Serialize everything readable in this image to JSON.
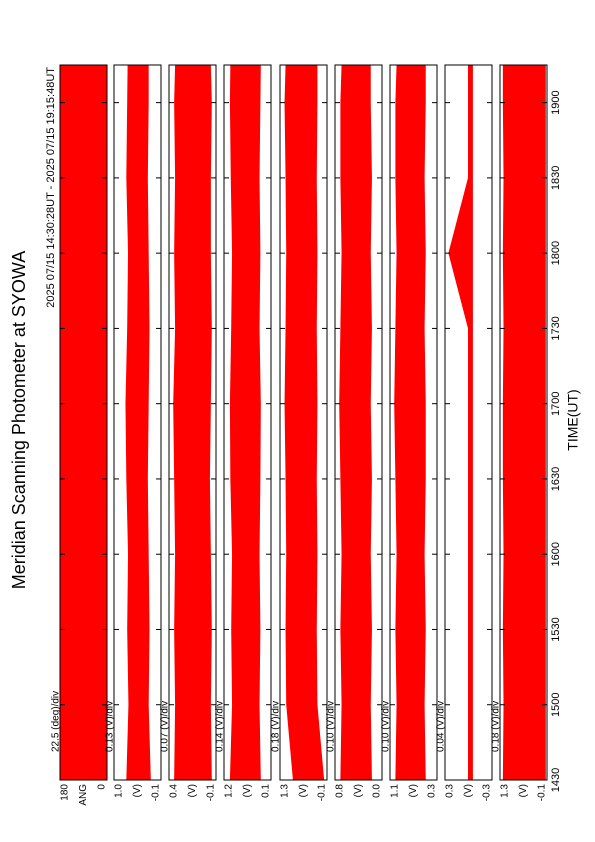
{
  "chart_data": {
    "type": "line",
    "title": "Meridian Scanning Photometer at SYOWA",
    "subtitle": "2025 07/15 14:30:28UT - 2025 07/15 19:15:48UT",
    "xlabel": "TIME(UT)",
    "color": "#ff0000",
    "xlim": [
      870,
      1155
    ],
    "xticks": [
      {
        "value": 870,
        "label": "1430"
      },
      {
        "value": 900,
        "label": "1500"
      },
      {
        "value": 930,
        "label": "1530"
      },
      {
        "value": 960,
        "label": "1600"
      },
      {
        "value": 990,
        "label": "1630"
      },
      {
        "value": 1020,
        "label": "1700"
      },
      {
        "value": 1050,
        "label": "1730"
      },
      {
        "value": 1080,
        "label": "1800"
      },
      {
        "value": 1110,
        "label": "1830"
      },
      {
        "value": 1140,
        "label": "1900"
      }
    ],
    "x": [
      870,
      900,
      930,
      960,
      990,
      1020,
      1050,
      1080,
      1110,
      1140,
      1155
    ],
    "panels": [
      {
        "label": "ANG",
        "scale": "22.5 (deg)/div",
        "ylim": [
          0,
          180
        ],
        "yticks": [
          0,
          180
        ],
        "max": [
          180,
          180,
          180,
          180,
          180,
          180,
          180,
          180,
          180,
          180,
          180
        ],
        "min": [
          0,
          0,
          0,
          0,
          0,
          0,
          0,
          0,
          0,
          0,
          0
        ]
      },
      {
        "label": "(V)",
        "scale": "0.13 (V)/div",
        "ylim": [
          -0.1,
          1.0
        ],
        "yticks": [
          -0.1,
          {
            "value": 1.0,
            "label": "1.0"
          }
        ],
        "max": [
          0.7,
          0.65,
          0.68,
          0.66,
          0.7,
          0.72,
          0.68,
          0.66,
          0.7,
          0.68,
          0.67
        ],
        "min": [
          0.15,
          0.2,
          0.18,
          0.2,
          0.22,
          0.2,
          0.18,
          0.2,
          0.22,
          0.2,
          0.2
        ]
      },
      {
        "label": "(V)",
        "scale": "0.07 (V)/div",
        "ylim": [
          -0.1,
          0.4
        ],
        "yticks": [
          -0.1,
          0.4
        ],
        "max": [
          0.34,
          0.33,
          0.34,
          0.33,
          0.34,
          0.35,
          0.33,
          0.34,
          0.33,
          0.34,
          0.33
        ],
        "min": [
          -0.05,
          -0.04,
          -0.05,
          -0.04,
          -0.03,
          -0.04,
          -0.05,
          -0.04,
          -0.04,
          -0.05,
          -0.04
        ]
      },
      {
        "label": "(V)",
        "scale": "0.14 (V)/div",
        "ylim": [
          0.1,
          1.2
        ],
        "yticks": [
          0.1,
          1.2
        ],
        "max": [
          1.05,
          1.0,
          1.02,
          1.0,
          1.04,
          1.05,
          1.02,
          1.0,
          1.03,
          1.05,
          1.04
        ],
        "min": [
          0.35,
          0.38,
          0.36,
          0.38,
          0.36,
          0.35,
          0.38,
          0.36,
          0.38,
          0.36,
          0.35
        ]
      },
      {
        "label": "(V)",
        "scale": "0.18 (V)/div",
        "ylim": [
          -0.1,
          1.3
        ],
        "yticks": [
          -0.1,
          1.3
        ],
        "max": [
          0.9,
          1.1,
          1.12,
          1.1,
          1.12,
          1.15,
          1.12,
          1.1,
          1.12,
          1.15,
          1.12
        ],
        "min": [
          0.0,
          0.2,
          0.22,
          0.2,
          0.22,
          0.2,
          0.22,
          0.2,
          0.22,
          0.2,
          0.2
        ]
      },
      {
        "label": "(V)",
        "scale": "0.10 (V)/div",
        "ylim": [
          0.0,
          0.8
        ],
        "yticks": [
          {
            "value": 0.0,
            "label": "0.0"
          },
          0.8
        ],
        "max": [
          0.7,
          0.68,
          0.7,
          0.68,
          0.7,
          0.72,
          0.7,
          0.68,
          0.7,
          0.7,
          0.68
        ],
        "min": [
          0.18,
          0.2,
          0.18,
          0.2,
          0.18,
          0.2,
          0.18,
          0.2,
          0.18,
          0.2,
          0.2
        ]
      },
      {
        "label": "(V)",
        "scale": "0.10 (V)/div",
        "ylim": [
          0.3,
          1.1
        ],
        "yticks": [
          0.3,
          1.1
        ],
        "max": [
          1.0,
          0.98,
          1.0,
          0.98,
          1.0,
          1.02,
          1.0,
          0.98,
          1.0,
          1.0,
          0.98
        ],
        "min": [
          0.5,
          0.52,
          0.5,
          0.52,
          0.5,
          0.5,
          0.52,
          0.5,
          0.52,
          0.5,
          0.5
        ]
      },
      {
        "label": "(V)",
        "scale": "0.04 (V)/div",
        "ylim": [
          -0.3,
          0.3
        ],
        "yticks": [
          -0.3,
          0.3
        ],
        "max": [
          0.0,
          0.0,
          0.0,
          0.0,
          0.0,
          0.0,
          0.0,
          0.25,
          0.0,
          0.0,
          0.0
        ],
        "min": [
          -0.05,
          -0.05,
          -0.05,
          -0.05,
          -0.05,
          -0.05,
          -0.05,
          -0.05,
          -0.05,
          -0.05,
          -0.05
        ]
      },
      {
        "label": "(V)",
        "scale": "0.18 (V)/div",
        "ylim": [
          -0.1,
          1.3
        ],
        "yticks": [
          -0.1,
          1.3
        ],
        "max": [
          1.2,
          1.18,
          1.2,
          1.18,
          1.2,
          1.2,
          1.18,
          1.2,
          1.18,
          1.2,
          1.2
        ],
        "min": [
          -0.05,
          -0.05,
          -0.05,
          -0.05,
          -0.05,
          -0.05,
          -0.05,
          -0.05,
          -0.05,
          -0.05,
          -0.05
        ]
      }
    ]
  }
}
